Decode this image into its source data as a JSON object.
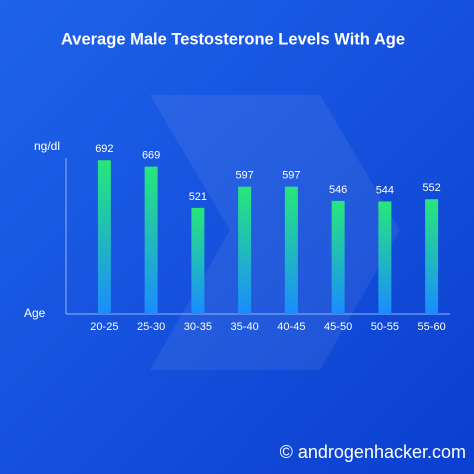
{
  "chart_data": {
    "type": "bar",
    "title": "Average Male Testosterone Levels With Age",
    "y_label": "ng/dl",
    "x_label": "Age",
    "categories": [
      "20-25",
      "25-30",
      "30-35",
      "35-40",
      "40-45",
      "45-50",
      "50-55",
      "55-60"
    ],
    "values": [
      692,
      669,
      521,
      597,
      597,
      546,
      544,
      552
    ],
    "color_top": "#27e77a",
    "color_bottom": "#1a8cff",
    "ylim": [
      140,
      700
    ],
    "footer": "© androgenhacker.com"
  }
}
